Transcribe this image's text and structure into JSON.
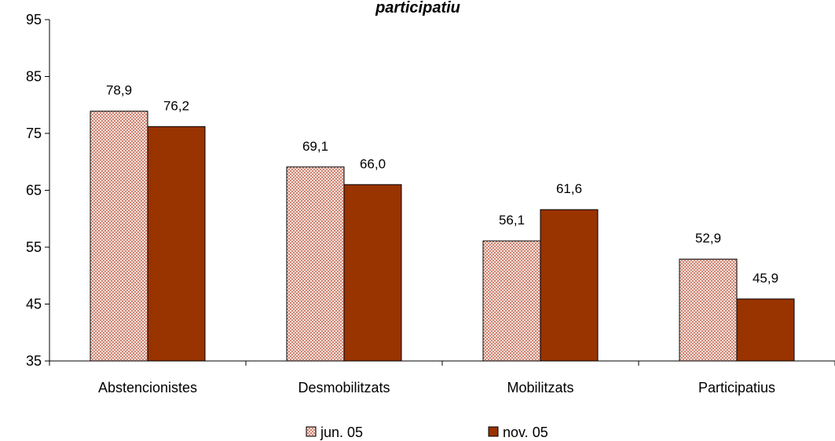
{
  "chart_data": {
    "type": "bar",
    "title": "participatiu",
    "xlabel": "",
    "ylabel": "",
    "ylim": [
      35,
      95
    ],
    "yticks": [
      35,
      45,
      55,
      65,
      75,
      85,
      95
    ],
    "grid": false,
    "legend_position": "bottom",
    "categories": [
      "Abstencionistes",
      "Desmobilitzats",
      "Mobilitzats",
      "Participatius"
    ],
    "series": [
      {
        "name": "jun. 05",
        "values": [
          78.9,
          69.1,
          56.1,
          52.9
        ],
        "labels": [
          "78,9",
          "69,1",
          "56,1",
          "52,9"
        ],
        "fill": "pattern-crosshatch",
        "color": "#C8715B"
      },
      {
        "name": "nov. 05",
        "values": [
          76.2,
          66.0,
          61.6,
          45.9
        ],
        "labels": [
          "76,2",
          "66,0",
          "61,6",
          "45,9"
        ],
        "fill": "solid",
        "color": "#993300"
      }
    ]
  }
}
